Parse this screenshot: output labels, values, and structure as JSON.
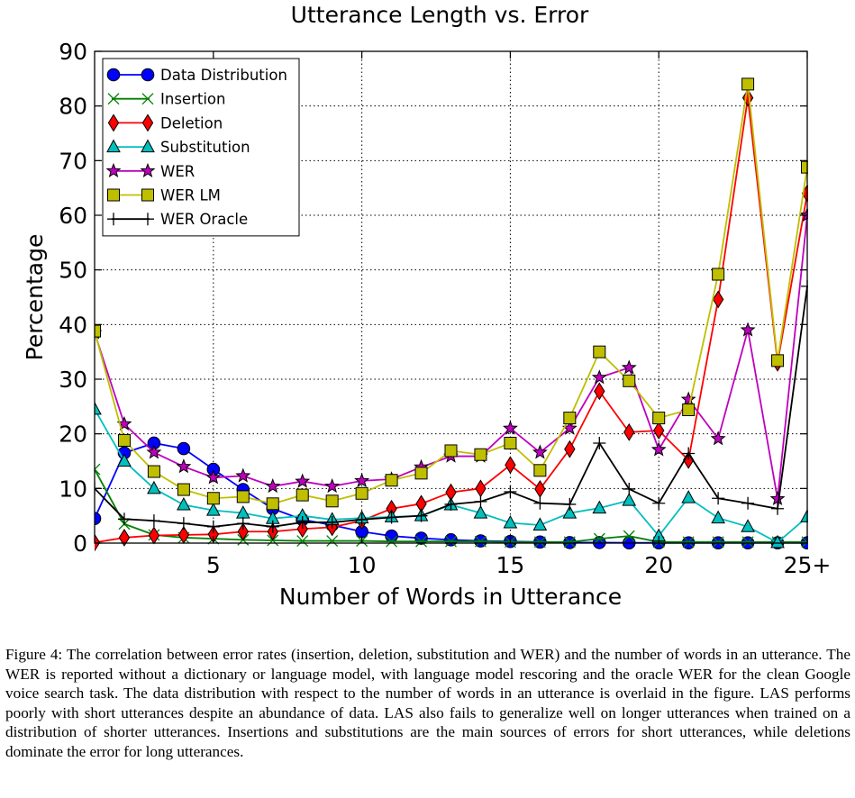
{
  "chart_data": {
    "type": "line",
    "title": "Utterance Length vs. Error",
    "xlabel": "Number of Words in Utterance",
    "ylabel": "Percentage",
    "xlim": [
      1,
      25
    ],
    "ylim": [
      0,
      90
    ],
    "xticks": [
      5,
      10,
      15,
      20,
      25
    ],
    "xtick_labels": [
      "5",
      "10",
      "15",
      "20",
      "25+"
    ],
    "yticks": [
      0,
      10,
      20,
      30,
      40,
      50,
      60,
      70,
      80,
      90
    ],
    "grid": true,
    "legend_position": "top-left",
    "x": [
      1,
      2,
      3,
      4,
      5,
      6,
      7,
      8,
      9,
      10,
      11,
      12,
      13,
      14,
      15,
      16,
      17,
      18,
      19,
      20,
      21,
      22,
      23,
      24,
      25
    ],
    "series": [
      {
        "name": "Data Distribution",
        "color": "#0000ff",
        "marker": "circle",
        "values": [
          4.5,
          16.5,
          18.3,
          17.3,
          13.5,
          9.8,
          6.3,
          4.3,
          3.3,
          2.1,
          1.3,
          0.9,
          0.6,
          0.4,
          0.3,
          0.2,
          0.1,
          0.1,
          0.05,
          0.05,
          0.05,
          0.05,
          0.05,
          0.05,
          0.05
        ]
      },
      {
        "name": "Insertion",
        "color": "#008000",
        "marker": "x",
        "values": [
          13.5,
          3.5,
          1.5,
          1.0,
          0.8,
          0.6,
          0.5,
          0.4,
          0.4,
          0.4,
          0.3,
          0.3,
          0.3,
          0.3,
          0.2,
          0.2,
          0.2,
          0.8,
          1.3,
          0.2,
          0.2,
          0.2,
          0.2,
          0.2,
          0.2
        ]
      },
      {
        "name": "Deletion",
        "color": "#ff0000",
        "marker": "diamond",
        "values": [
          0.1,
          1.0,
          1.4,
          1.5,
          1.6,
          2.1,
          2.1,
          2.6,
          2.9,
          4.1,
          6.3,
          7.2,
          9.3,
          10.0,
          14.3,
          9.9,
          17.2,
          27.8,
          20.3,
          20.6,
          15.2,
          44.6,
          81.5,
          33.0,
          64.0
        ]
      },
      {
        "name": "Substitution",
        "color": "#00bfbf",
        "marker": "triangle",
        "values": [
          24.5,
          15.0,
          10.0,
          7.0,
          6.0,
          5.5,
          4.5,
          5.0,
          4.3,
          4.6,
          4.8,
          5.0,
          7.0,
          5.5,
          3.7,
          3.3,
          5.5,
          6.4,
          7.8,
          1.3,
          8.3,
          4.6,
          3.0,
          0.1,
          4.8
        ]
      },
      {
        "name": "WER",
        "color": "#bf00bf",
        "marker": "star",
        "values": [
          38.5,
          21.8,
          16.6,
          14.0,
          12.0,
          12.3,
          10.4,
          11.3,
          10.4,
          11.4,
          11.7,
          13.9,
          15.9,
          15.9,
          21.0,
          16.6,
          21.0,
          30.3,
          32.1,
          17.1,
          26.3,
          19.1,
          39.0,
          8.1,
          60.0
        ]
      },
      {
        "name": "WER LM",
        "color": "#bfbf00",
        "marker": "square",
        "values": [
          38.8,
          18.8,
          13.1,
          9.8,
          8.2,
          8.5,
          7.2,
          8.8,
          7.7,
          9.1,
          11.5,
          12.8,
          16.9,
          16.2,
          18.3,
          13.3,
          22.9,
          35.0,
          29.7,
          22.9,
          24.4,
          49.2,
          84.0,
          33.4,
          68.8
        ]
      },
      {
        "name": "WER Oracle",
        "color": "#000000",
        "marker": "plus",
        "values": [
          10.0,
          4.4,
          4.1,
          3.6,
          3.0,
          3.6,
          3.0,
          3.8,
          3.8,
          4.3,
          4.7,
          5.0,
          7.1,
          7.6,
          9.4,
          7.3,
          7.1,
          18.3,
          9.9,
          7.3,
          16.4,
          8.2,
          7.3,
          6.3,
          47.0
        ]
      }
    ]
  },
  "caption": {
    "label": "Figure 4:",
    "text": "The correlation between error rates (insertion, deletion, substitution and WER) and the number of words in an utterance. The WER is reported without a dictionary or language model, with language model rescoring and the oracle WER for the clean Google voice search task. The data distribution with respect to the number of words in an utterance is overlaid in the figure. LAS performs poorly with short utterances despite an abundance of data. LAS also fails to generalize well on longer utterances when trained on a distribution of shorter utterances. Insertions and substitutions are the main sources of errors for short utterances, while deletions dominate the error for long utterances."
  }
}
